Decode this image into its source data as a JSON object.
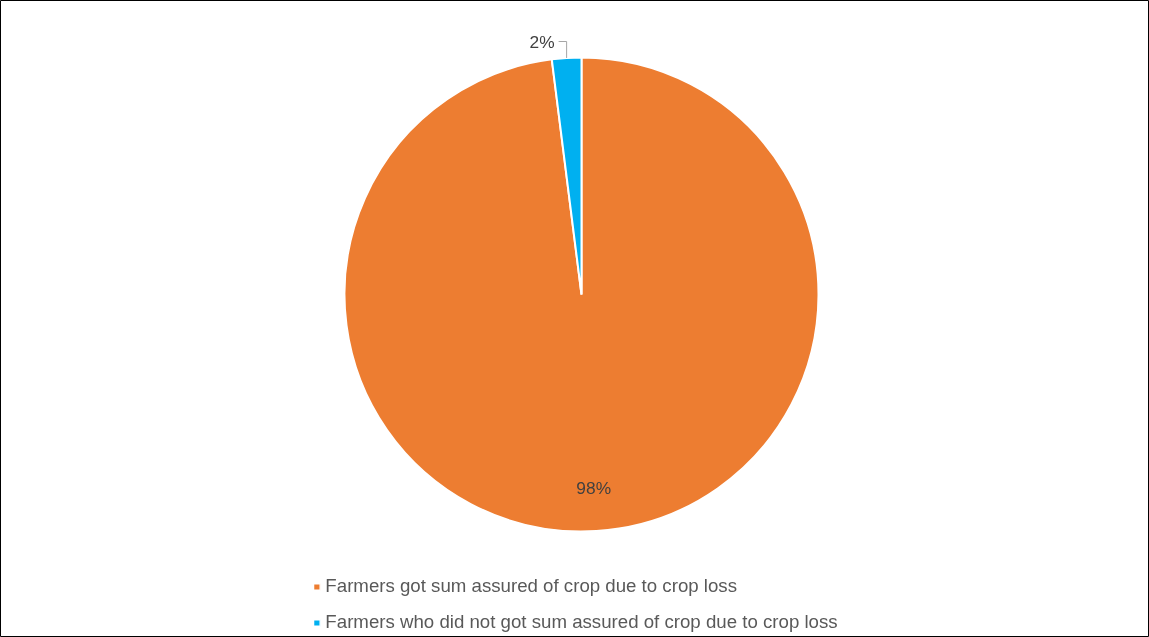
{
  "chart_data": {
    "type": "pie",
    "categories": [
      "Farmers got sum assured of crop due to crop loss",
      "Farmers who did not got sum assured of crop due to crop loss"
    ],
    "values": [
      98,
      2
    ],
    "colors": [
      "#ed7d31",
      "#00b0f0"
    ],
    "value_labels": [
      "98%",
      "2%"
    ],
    "legend": "bottom"
  }
}
